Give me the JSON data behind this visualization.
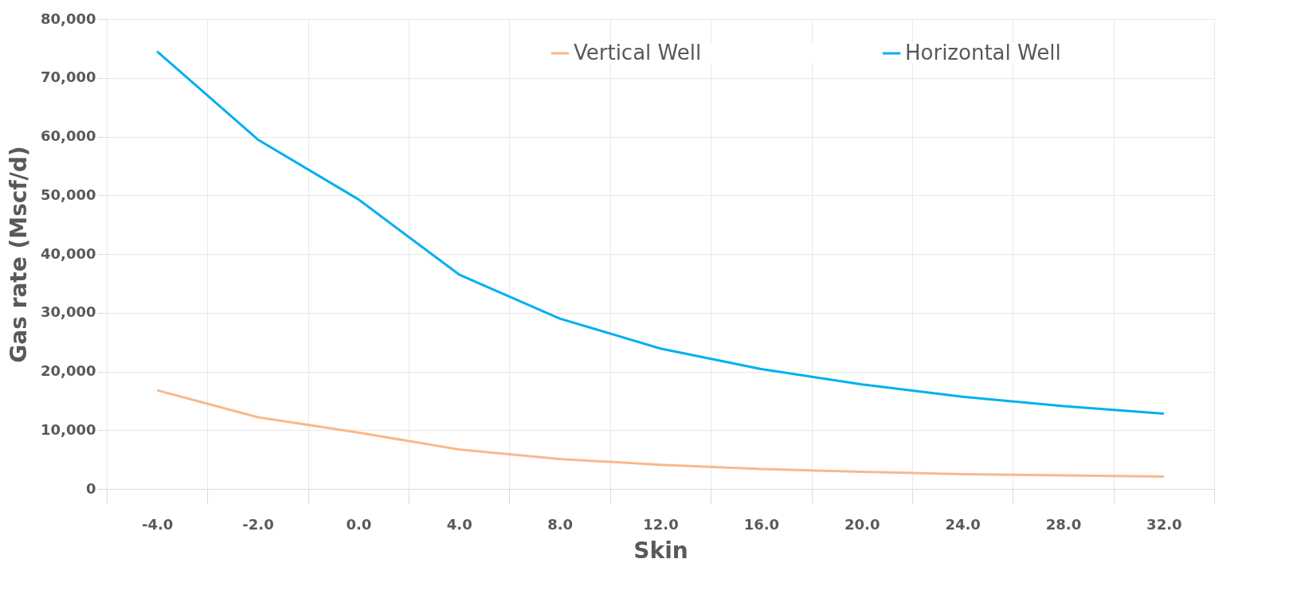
{
  "chart_data": {
    "type": "line",
    "xlabel": "Skin",
    "ylabel": "Gas rate (Mscf/d)",
    "categories": [
      "-4.0",
      "-2.0",
      "0.0",
      "4.0",
      "8.0",
      "12.0",
      "16.0",
      "20.0",
      "24.0",
      "28.0",
      "32.0"
    ],
    "series": [
      {
        "name": "Vertical Well",
        "color": "#f8b98a",
        "values": [
          16800,
          12200,
          9600,
          6700,
          5100,
          4100,
          3400,
          2900,
          2500,
          2300,
          2100
        ]
      },
      {
        "name": "Horizontal Well",
        "color": "#00b0f0",
        "values": [
          74500,
          59500,
          49300,
          36500,
          29000,
          23900,
          20400,
          17800,
          15700,
          14100,
          12800
        ]
      }
    ],
    "ylim": [
      0,
      80000
    ],
    "yticks": [
      0,
      {
        "value": 10000,
        "label": "10,000"
      },
      {
        "value": 20000,
        "label": "20,000"
      },
      {
        "value": 30000,
        "label": "30,000"
      },
      {
        "value": 40000,
        "label": "40,000"
      },
      {
        "value": 50000,
        "label": "50,000"
      },
      {
        "value": 60000,
        "label": "60,000"
      },
      {
        "value": 70000,
        "label": "70,000"
      },
      {
        "value": 80000,
        "label": "80,000"
      }
    ],
    "grid": true,
    "legend": "top",
    "marker": "none",
    "line_style": "solid"
  }
}
